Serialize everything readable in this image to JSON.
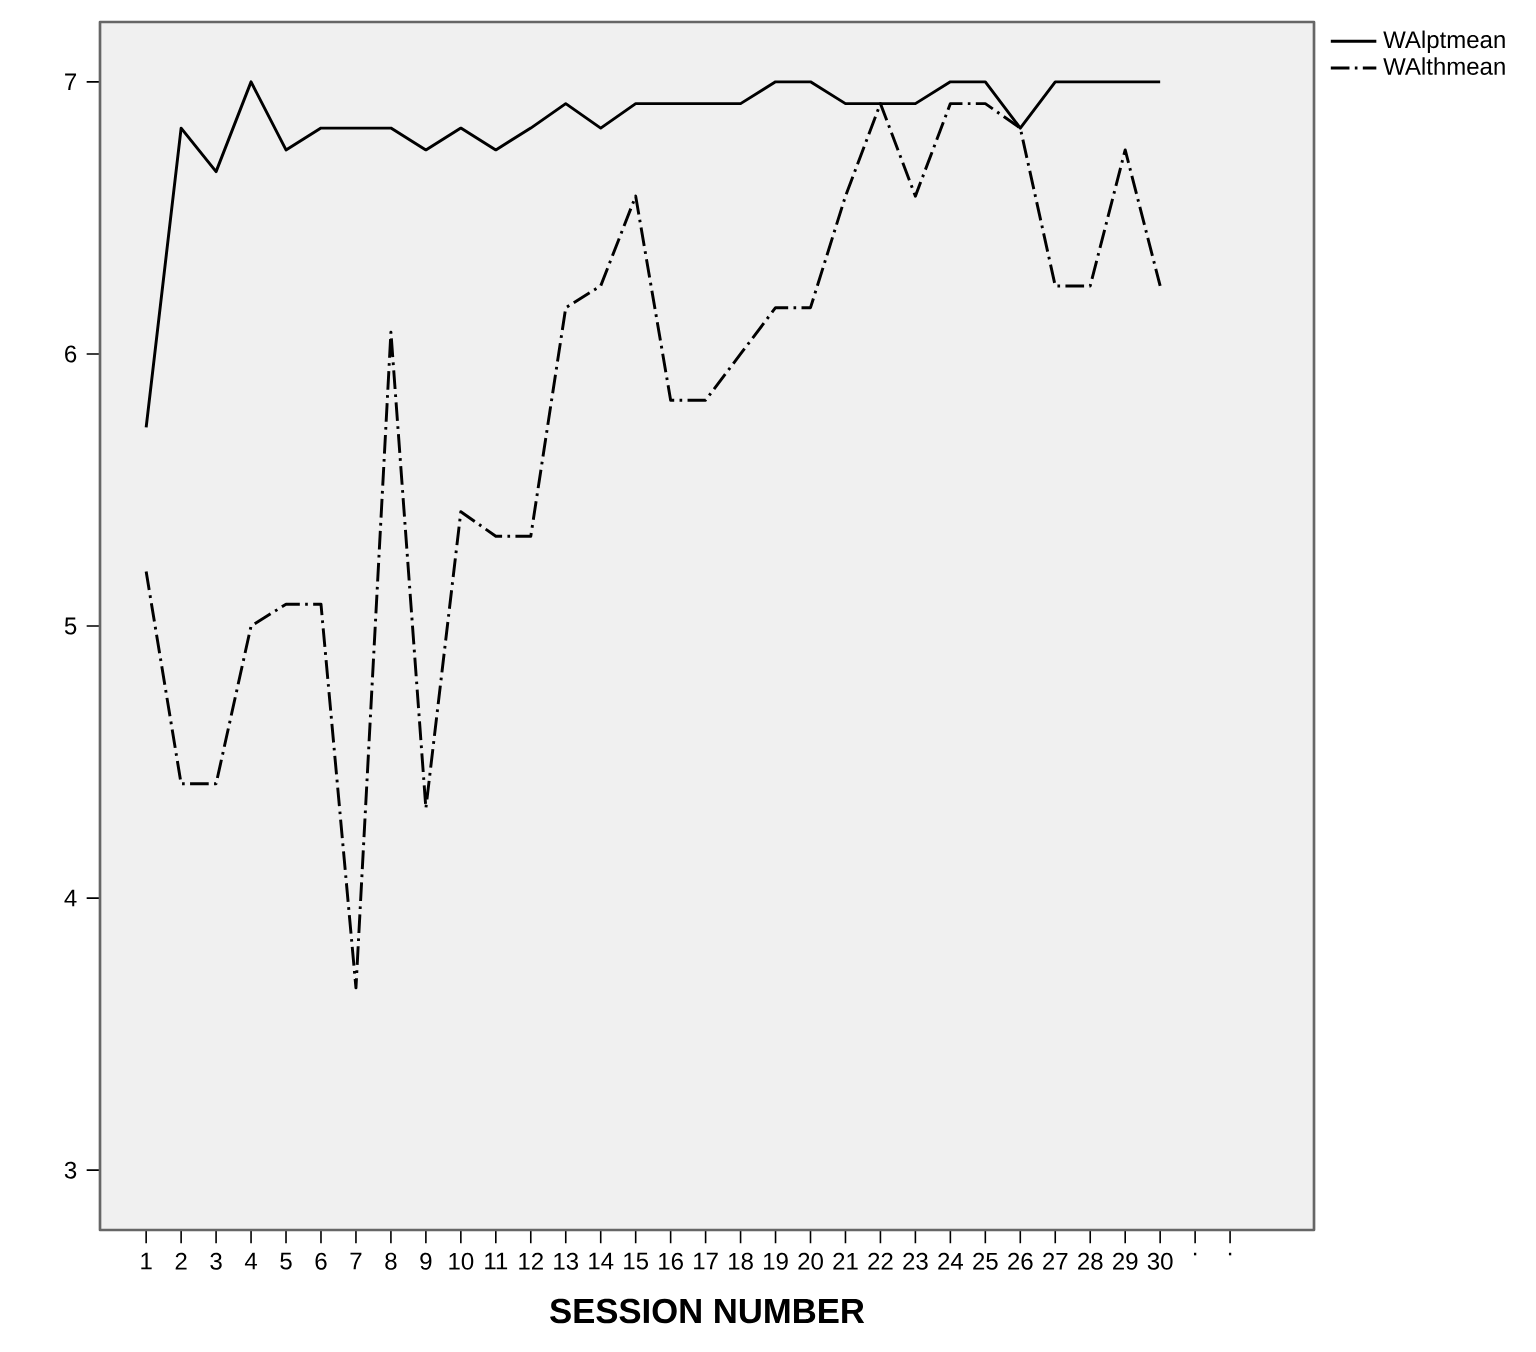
{
  "chart_data": {
    "type": "line",
    "xlabel": "SESSION NUMBER",
    "categories": [
      "1",
      "2",
      "3",
      "4",
      "5",
      "6",
      "7",
      "8",
      "9",
      "10",
      "11",
      "12",
      "13",
      "14",
      "15",
      "16",
      "17",
      "18",
      "19",
      "20",
      "21",
      "22",
      "23",
      "24",
      "25",
      "26",
      "27",
      "28",
      "29",
      "30",
      ".",
      "."
    ],
    "series": [
      {
        "name": "WAlptmean",
        "color": "#000000",
        "line_style": "solid",
        "values": [
          5.73,
          6.83,
          6.67,
          7.0,
          6.75,
          6.83,
          6.83,
          6.83,
          6.75,
          6.83,
          6.75,
          6.83,
          6.92,
          6.83,
          6.92,
          6.92,
          6.92,
          6.92,
          7.0,
          7.0,
          6.92,
          6.92,
          6.92,
          7.0,
          7.0,
          6.83,
          7.0,
          7.0,
          7.0,
          7.0,
          null,
          null
        ]
      },
      {
        "name": "WAlthmean",
        "color": "#000000",
        "line_style": "dashdot",
        "values": [
          5.2,
          4.42,
          4.42,
          5.0,
          5.08,
          5.08,
          3.67,
          6.08,
          4.33,
          5.42,
          5.33,
          5.33,
          6.17,
          6.25,
          6.58,
          5.83,
          5.83,
          6.0,
          6.17,
          6.17,
          6.58,
          6.92,
          6.58,
          6.92,
          6.92,
          6.83,
          6.25,
          6.25,
          6.75,
          6.25,
          null,
          null
        ]
      }
    ],
    "ylim": [
      2.78,
      7.22
    ],
    "yticks": [
      3,
      4,
      5,
      6,
      7
    ],
    "legend": "top right",
    "grid": false,
    "marker": "none"
  }
}
